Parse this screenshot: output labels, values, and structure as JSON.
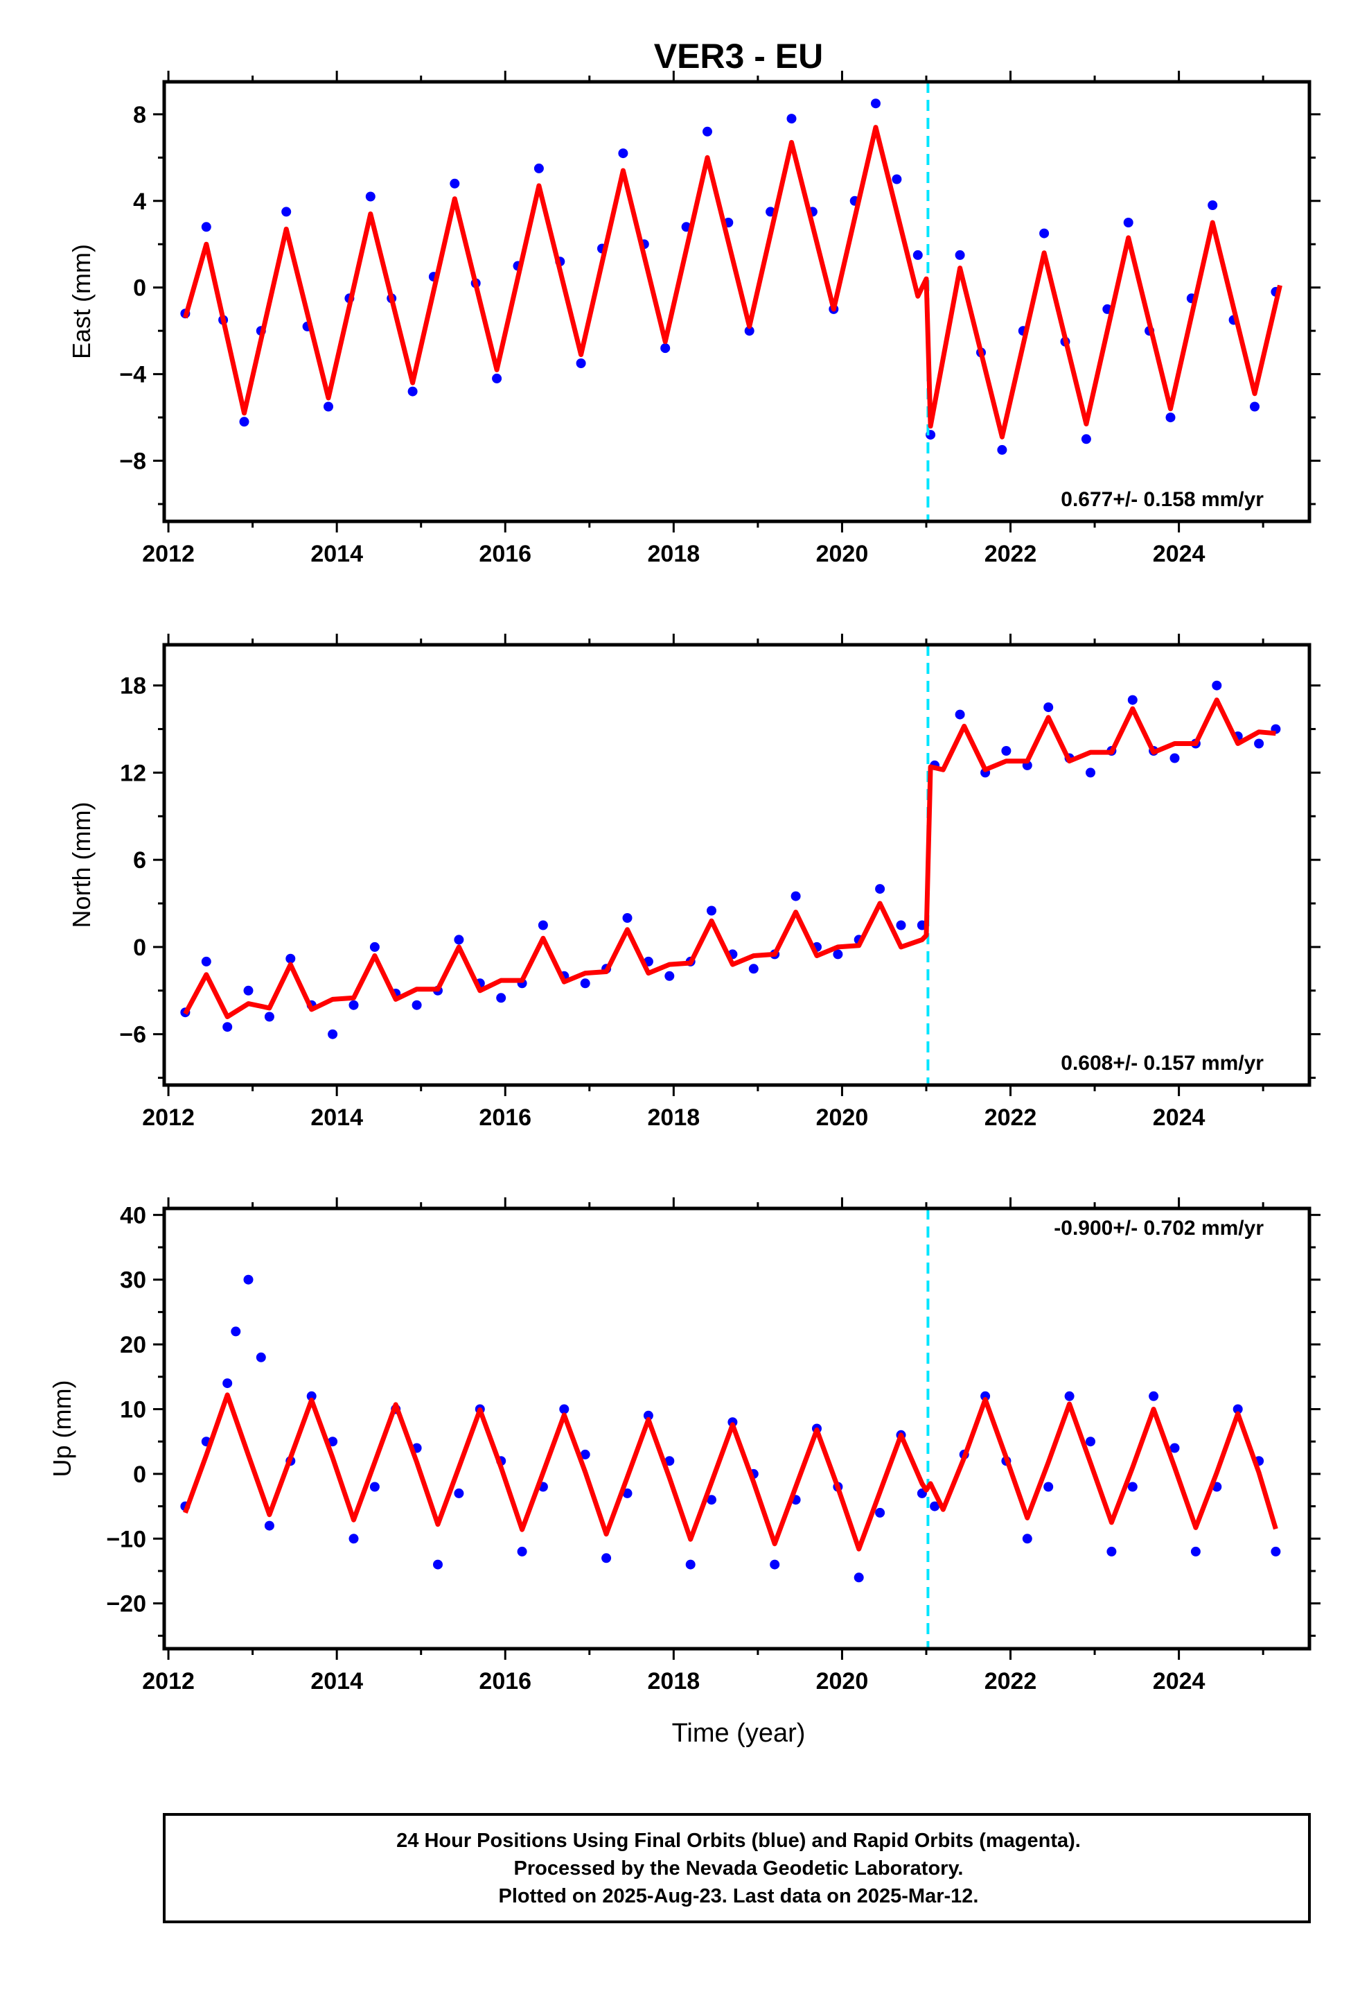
{
  "title": "VER3 - EU",
  "xlabel": "Time (year)",
  "footer": {
    "line1": "24 Hour Positions Using Final Orbits (blue) and Rapid Orbits (magenta).",
    "line2": "Processed by the Nevada Geodetic Laboratory.",
    "line3": "Plotted on 2025-Aug-23. Last data on 2025-Mar-12."
  },
  "colors": {
    "points": "#0000ff",
    "fit": "#ff0000",
    "offset_line": "#00e5ff",
    "frame": "#000000"
  },
  "chart_data": [
    {
      "type": "scatter",
      "ylabel": "East (mm)",
      "xlim": [
        2011.95,
        2025.55
      ],
      "ylim": [
        -10.8,
        9.5
      ],
      "x_ticks": [
        2012,
        2014,
        2016,
        2018,
        2020,
        2022,
        2024
      ],
      "y_ticks": [
        -8,
        -4,
        0,
        4,
        8
      ],
      "rate_label": "0.677+/- 0.158 mm/yr",
      "rate_label_position": "bottom-right",
      "offset_epoch": 2021.02,
      "grid": false,
      "series": [
        {
          "role": "daily-positions",
          "x": [
            2012.2,
            2012.45,
            2012.65,
            2012.9,
            2013.1,
            2013.4,
            2013.65,
            2013.9,
            2014.15,
            2014.4,
            2014.65,
            2014.9,
            2015.15,
            2015.4,
            2015.65,
            2015.9,
            2016.15,
            2016.4,
            2016.65,
            2016.9,
            2017.15,
            2017.4,
            2017.65,
            2017.9,
            2018.15,
            2018.4,
            2018.65,
            2018.9,
            2019.15,
            2019.4,
            2019.65,
            2019.9,
            2020.15,
            2020.4,
            2020.65,
            2020.9,
            2021.05,
            2021.4,
            2021.65,
            2021.9,
            2022.15,
            2022.4,
            2022.65,
            2022.9,
            2023.15,
            2023.4,
            2023.65,
            2023.9,
            2024.15,
            2024.4,
            2024.65,
            2024.9,
            2025.15
          ],
          "y": [
            -1.2,
            2.8,
            -1.5,
            -6.2,
            -2.0,
            3.5,
            -1.8,
            -5.5,
            -0.5,
            4.2,
            -0.5,
            -4.8,
            0.5,
            4.8,
            0.2,
            -4.2,
            1.0,
            5.5,
            1.2,
            -3.5,
            1.8,
            6.2,
            2.0,
            -2.8,
            2.8,
            7.2,
            3.0,
            -2.0,
            3.5,
            7.8,
            3.5,
            -1.0,
            4.0,
            8.5,
            5.0,
            1.5,
            -6.8,
            1.5,
            -3.0,
            -7.5,
            -2.0,
            2.5,
            -2.5,
            -7.0,
            -1.0,
            3.0,
            -2.0,
            -6.0,
            -0.5,
            3.8,
            -1.5,
            -5.5,
            -0.2
          ]
        },
        {
          "role": "model-fit",
          "x": [
            2012.2,
            2012.45,
            2012.9,
            2013.4,
            2013.9,
            2014.4,
            2014.9,
            2015.4,
            2015.9,
            2016.4,
            2016.9,
            2017.4,
            2017.9,
            2018.4,
            2018.9,
            2019.4,
            2019.9,
            2020.4,
            2020.9,
            2021.0,
            2021.05,
            2021.4,
            2021.9,
            2022.4,
            2022.9,
            2023.4,
            2023.9,
            2024.4,
            2024.9,
            2025.2
          ],
          "y": [
            -1.4,
            2.0,
            -5.8,
            2.7,
            -5.1,
            3.4,
            -4.4,
            4.1,
            -3.8,
            4.7,
            -3.1,
            5.4,
            -2.5,
            6.0,
            -1.8,
            6.7,
            -1.0,
            7.4,
            -0.4,
            0.4,
            -6.4,
            0.9,
            -6.9,
            1.6,
            -6.3,
            2.3,
            -5.6,
            3.0,
            -4.9,
            0.1
          ]
        }
      ]
    },
    {
      "type": "scatter",
      "ylabel": "North (mm)",
      "xlim": [
        2011.95,
        2025.55
      ],
      "ylim": [
        -9.5,
        20.8
      ],
      "x_ticks": [
        2012,
        2014,
        2016,
        2018,
        2020,
        2022,
        2024
      ],
      "y_ticks": [
        -6,
        0,
        6,
        12,
        18
      ],
      "rate_label": "0.608+/- 0.157 mm/yr",
      "rate_label_position": "bottom-right",
      "offset_epoch": 2021.02,
      "grid": false,
      "series": [
        {
          "role": "daily-positions",
          "x": [
            2012.2,
            2012.45,
            2012.7,
            2012.95,
            2013.2,
            2013.45,
            2013.7,
            2013.95,
            2014.2,
            2014.45,
            2014.7,
            2014.95,
            2015.2,
            2015.45,
            2015.7,
            2015.95,
            2016.2,
            2016.45,
            2016.7,
            2016.95,
            2017.2,
            2017.45,
            2017.7,
            2017.95,
            2018.2,
            2018.45,
            2018.7,
            2018.95,
            2019.2,
            2019.45,
            2019.7,
            2019.95,
            2020.2,
            2020.45,
            2020.7,
            2020.95,
            2021.1,
            2021.4,
            2021.7,
            2021.95,
            2022.2,
            2022.45,
            2022.7,
            2022.95,
            2023.2,
            2023.45,
            2023.7,
            2023.95,
            2024.2,
            2024.45,
            2024.7,
            2024.95,
            2025.15
          ],
          "y": [
            -4.5,
            -1.0,
            -5.5,
            -3.0,
            -4.8,
            -0.8,
            -4.0,
            -6.0,
            -4.0,
            0.0,
            -3.2,
            -4.0,
            -3.0,
            0.5,
            -2.5,
            -3.5,
            -2.5,
            1.5,
            -2.0,
            -2.5,
            -1.5,
            2.0,
            -1.0,
            -2.0,
            -1.0,
            2.5,
            -0.5,
            -1.5,
            -0.5,
            3.5,
            0.0,
            -0.5,
            0.5,
            4.0,
            1.5,
            1.5,
            12.5,
            16.0,
            12.0,
            13.5,
            12.5,
            16.5,
            13.0,
            12.0,
            13.5,
            17.0,
            13.5,
            13.0,
            14.0,
            18.0,
            14.5,
            14.0,
            15.0
          ]
        },
        {
          "role": "model-fit",
          "x": [
            2012.2,
            2012.45,
            2012.7,
            2012.95,
            2013.2,
            2013.45,
            2013.7,
            2013.95,
            2014.2,
            2014.45,
            2014.7,
            2014.95,
            2015.2,
            2015.45,
            2015.7,
            2015.95,
            2016.2,
            2016.45,
            2016.7,
            2016.95,
            2017.2,
            2017.45,
            2017.7,
            2017.95,
            2018.2,
            2018.45,
            2018.7,
            2018.95,
            2019.2,
            2019.45,
            2019.7,
            2019.95,
            2020.2,
            2020.45,
            2020.7,
            2020.95,
            2021.0,
            2021.05,
            2021.2,
            2021.45,
            2021.7,
            2021.95,
            2022.2,
            2022.45,
            2022.7,
            2022.95,
            2023.2,
            2023.45,
            2023.7,
            2023.95,
            2024.2,
            2024.45,
            2024.7,
            2024.95,
            2025.15
          ],
          "y": [
            -4.6,
            -1.9,
            -4.8,
            -3.9,
            -4.2,
            -1.2,
            -4.3,
            -3.6,
            -3.5,
            -0.6,
            -3.6,
            -2.9,
            -2.9,
            0.0,
            -3.0,
            -2.3,
            -2.3,
            0.6,
            -2.4,
            -1.8,
            -1.7,
            1.2,
            -1.8,
            -1.2,
            -1.1,
            1.8,
            -1.2,
            -0.6,
            -0.5,
            2.4,
            -0.6,
            0.0,
            0.1,
            3.0,
            0.0,
            0.5,
            0.8,
            12.4,
            12.2,
            15.2,
            12.2,
            12.8,
            12.8,
            15.8,
            12.8,
            13.4,
            13.4,
            16.4,
            13.4,
            14.0,
            14.0,
            17.0,
            14.0,
            14.8,
            14.7
          ]
        }
      ]
    },
    {
      "type": "scatter",
      "ylabel": "Up (mm)",
      "xlim": [
        2011.95,
        2025.55
      ],
      "ylim": [
        -27,
        41
      ],
      "x_ticks": [
        2012,
        2014,
        2016,
        2018,
        2020,
        2022,
        2024
      ],
      "y_ticks": [
        -20,
        -10,
        0,
        10,
        20,
        30,
        40
      ],
      "rate_label": "-0.900+/- 0.702 mm/yr",
      "rate_label_position": "top-right",
      "offset_epoch": 2021.02,
      "grid": false,
      "series": [
        {
          "role": "daily-positions",
          "x": [
            2012.2,
            2012.45,
            2012.7,
            2012.8,
            2012.95,
            2013.1,
            2013.2,
            2013.45,
            2013.7,
            2013.95,
            2014.2,
            2014.45,
            2014.7,
            2014.95,
            2015.2,
            2015.45,
            2015.7,
            2015.95,
            2016.2,
            2016.45,
            2016.7,
            2016.95,
            2017.2,
            2017.45,
            2017.7,
            2017.95,
            2018.2,
            2018.45,
            2018.7,
            2018.95,
            2019.2,
            2019.45,
            2019.7,
            2019.95,
            2020.2,
            2020.45,
            2020.7,
            2020.95,
            2021.1,
            2021.45,
            2021.7,
            2021.95,
            2022.2,
            2022.45,
            2022.7,
            2022.95,
            2023.2,
            2023.45,
            2023.7,
            2023.95,
            2024.2,
            2024.45,
            2024.7,
            2024.95,
            2025.15
          ],
          "y": [
            -5,
            5,
            14,
            22,
            30,
            18,
            -8,
            2,
            12,
            5,
            -10,
            -2,
            10,
            4,
            -14,
            -3,
            10,
            2,
            -12,
            -2,
            10,
            3,
            -13,
            -3,
            9,
            2,
            -14,
            -4,
            8,
            0,
            -14,
            -4,
            7,
            -2,
            -16,
            -6,
            6,
            -3,
            -5,
            3,
            12,
            2,
            -10,
            -2,
            12,
            5,
            -12,
            -2,
            12,
            4,
            -12,
            -2,
            10,
            2,
            -12
          ]
        },
        {
          "role": "model-fit",
          "x": [
            2012.2,
            2012.45,
            2012.7,
            2012.95,
            2013.2,
            2013.45,
            2013.7,
            2013.95,
            2014.2,
            2014.45,
            2014.7,
            2014.95,
            2015.2,
            2015.45,
            2015.7,
            2015.95,
            2016.2,
            2016.45,
            2016.7,
            2016.95,
            2017.2,
            2017.45,
            2017.7,
            2017.95,
            2018.2,
            2018.45,
            2018.7,
            2018.95,
            2019.2,
            2019.45,
            2019.7,
            2019.95,
            2020.2,
            2020.45,
            2020.7,
            2020.95,
            2021.0,
            2021.05,
            2021.2,
            2021.45,
            2021.7,
            2021.95,
            2022.2,
            2022.45,
            2022.7,
            2022.95,
            2023.2,
            2023.45,
            2023.7,
            2023.95,
            2024.2,
            2024.45,
            2024.7,
            2024.95,
            2025.15
          ],
          "y": [
            -6.0,
            2.9,
            12.2,
            2.9,
            -6.3,
            2.5,
            11.4,
            2.5,
            -7.1,
            1.8,
            10.7,
            1.8,
            -7.8,
            1.0,
            9.9,
            1.0,
            -8.6,
            0.2,
            9.1,
            0.3,
            -9.3,
            -0.5,
            8.4,
            -0.6,
            -10.1,
            -1.3,
            7.6,
            -1.3,
            -10.8,
            -2.0,
            6.8,
            -2.1,
            -11.6,
            -2.8,
            6.0,
            -1.5,
            -2.5,
            -1.5,
            -5.5,
            2.5,
            11.5,
            2.5,
            -6.8,
            1.8,
            10.8,
            1.7,
            -7.5,
            1.0,
            10.0,
            1.0,
            -8.3,
            0.2,
            9.3,
            0.2,
            -8.5
          ]
        }
      ]
    }
  ]
}
